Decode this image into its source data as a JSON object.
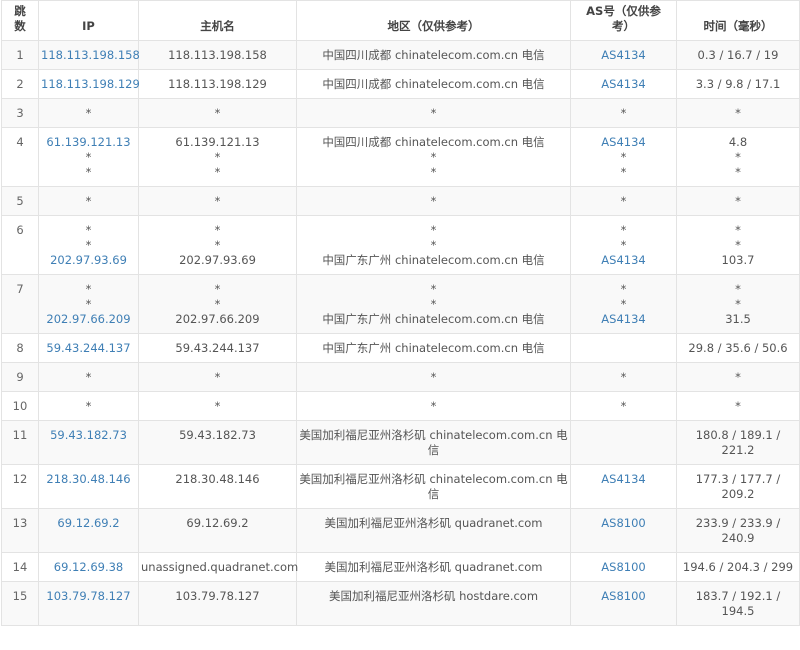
{
  "headers": [
    "跳数",
    "IP",
    "主机名",
    "地区（仅供参考）",
    "AS号（仅供参考）",
    "时间（毫秒）"
  ],
  "colors": {
    "link": "#3f7fb5",
    "text": "#555555",
    "stripe": "#f9f9f9",
    "border": "#e3e3e3"
  },
  "rows": [
    {
      "hop": "1",
      "ip": [
        "118.113.198.158"
      ],
      "host": [
        "118.113.198.158"
      ],
      "region": [
        "中国四川成都 chinatelecom.com.cn 电信"
      ],
      "as": [
        "AS4134"
      ],
      "time": [
        "0.3 / 16.7 / 19"
      ]
    },
    {
      "hop": "2",
      "ip": [
        "118.113.198.129"
      ],
      "host": [
        "118.113.198.129"
      ],
      "region": [
        "中国四川成都 chinatelecom.com.cn 电信"
      ],
      "as": [
        "AS4134"
      ],
      "time": [
        "3.3 / 9.8 / 17.1"
      ]
    },
    {
      "hop": "3",
      "ip": [
        "*"
      ],
      "host": [
        "*"
      ],
      "region": [
        "*"
      ],
      "as": [
        "*"
      ],
      "time": [
        "*"
      ]
    },
    {
      "hop": "4",
      "ip": [
        "61.139.121.13",
        "*",
        "*"
      ],
      "host": [
        "61.139.121.13",
        "*",
        "*"
      ],
      "region": [
        "中国四川成都 chinatelecom.com.cn 电信",
        "*",
        "*"
      ],
      "as": [
        "AS4134",
        "*",
        "*"
      ],
      "time": [
        "4.8",
        "*",
        "*"
      ]
    },
    {
      "hop": "5",
      "ip": [
        "*"
      ],
      "host": [
        "*"
      ],
      "region": [
        "*"
      ],
      "as": [
        "*"
      ],
      "time": [
        "*"
      ]
    },
    {
      "hop": "6",
      "ip": [
        "*",
        "*",
        "202.97.93.69"
      ],
      "host": [
        "*",
        "*",
        "202.97.93.69"
      ],
      "region": [
        "*",
        "*",
        "中国广东广州 chinatelecom.com.cn 电信"
      ],
      "as": [
        "*",
        "*",
        "AS4134"
      ],
      "time": [
        "*",
        "*",
        "103.7"
      ]
    },
    {
      "hop": "7",
      "ip": [
        "*",
        "*",
        "202.97.66.209"
      ],
      "host": [
        "*",
        "*",
        "202.97.66.209"
      ],
      "region": [
        "*",
        "*",
        "中国广东广州 chinatelecom.com.cn 电信"
      ],
      "as": [
        "*",
        "*",
        "AS4134"
      ],
      "time": [
        "*",
        "*",
        "31.5"
      ]
    },
    {
      "hop": "8",
      "ip": [
        "59.43.244.137"
      ],
      "host": [
        "59.43.244.137"
      ],
      "region": [
        "中国广东广州 chinatelecom.com.cn 电信"
      ],
      "as": [],
      "time": [
        "29.8 / 35.6 / 50.6"
      ]
    },
    {
      "hop": "9",
      "ip": [
        "*"
      ],
      "host": [
        "*"
      ],
      "region": [
        "*"
      ],
      "as": [
        "*"
      ],
      "time": [
        "*"
      ]
    },
    {
      "hop": "10",
      "ip": [
        "*"
      ],
      "host": [
        "*"
      ],
      "region": [
        "*"
      ],
      "as": [
        "*"
      ],
      "time": [
        "*"
      ]
    },
    {
      "hop": "11",
      "ip": [
        "59.43.182.73"
      ],
      "host": [
        "59.43.182.73"
      ],
      "region": [
        "美国加利福尼亚州洛杉矶 chinatelecom.com.cn 电",
        "信"
      ],
      "as": [],
      "time": [
        "180.8 / 189.1 /",
        "221.2"
      ]
    },
    {
      "hop": "12",
      "ip": [
        "218.30.48.146"
      ],
      "host": [
        "218.30.48.146"
      ],
      "region": [
        "美国加利福尼亚州洛杉矶 chinatelecom.com.cn 电",
        "信"
      ],
      "as": [
        "AS4134"
      ],
      "time": [
        "177.3 / 177.7 /",
        "209.2"
      ]
    },
    {
      "hop": "13",
      "ip": [
        "69.12.69.2"
      ],
      "host": [
        "69.12.69.2"
      ],
      "region": [
        "美国加利福尼亚州洛杉矶 quadranet.com"
      ],
      "as": [
        "AS8100"
      ],
      "time": [
        "233.9 / 233.9 /",
        "240.9"
      ]
    },
    {
      "hop": "14",
      "ip": [
        "69.12.69.38"
      ],
      "host": [
        "unassigned.quadranet.com"
      ],
      "region": [
        "美国加利福尼亚州洛杉矶 quadranet.com"
      ],
      "as": [
        "AS8100"
      ],
      "time": [
        "194.6 / 204.3 / 299"
      ]
    },
    {
      "hop": "15",
      "ip": [
        "103.79.78.127"
      ],
      "host": [
        "103.79.78.127"
      ],
      "region": [
        "美国加利福尼亚州洛杉矶 hostdare.com"
      ],
      "as": [
        "AS8100"
      ],
      "time": [
        "183.7 / 192.1 /",
        "194.5"
      ]
    }
  ]
}
